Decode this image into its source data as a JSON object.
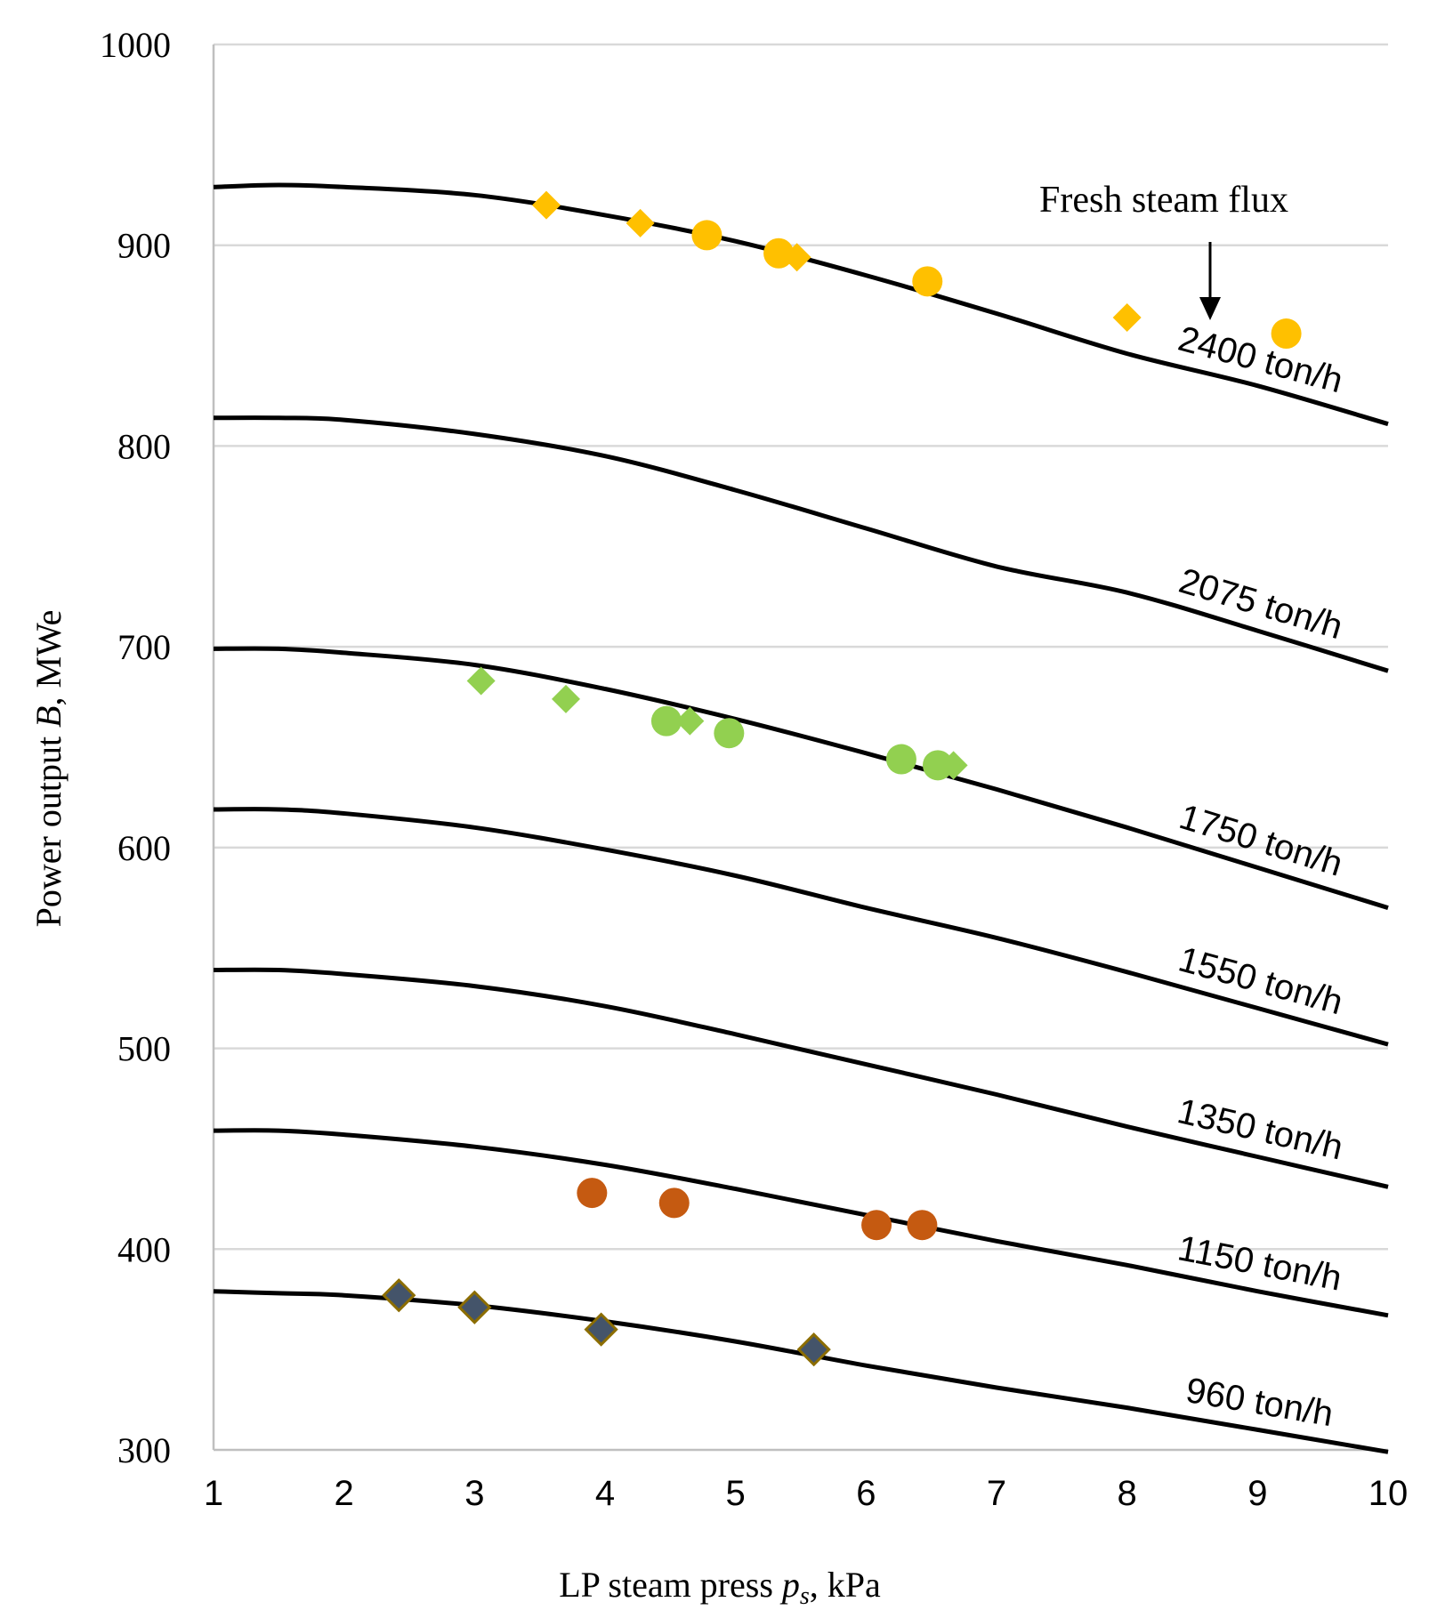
{
  "chart_data": {
    "type": "line",
    "title": "",
    "xlabel": {
      "prefix": "LP steam press ",
      "symbol": "p",
      "subscript": "s",
      "suffix": ", kPa"
    },
    "ylabel": {
      "prefix": "Power output ",
      "symbol": "B",
      "suffix": ", MWe"
    },
    "xlim": [
      1,
      10
    ],
    "ylim": [
      300,
      1000
    ],
    "x_ticks": [
      1,
      2,
      3,
      4,
      5,
      6,
      7,
      8,
      9,
      10
    ],
    "y_ticks": [
      300,
      400,
      500,
      600,
      700,
      800,
      900,
      1000
    ],
    "grid": "horizontal",
    "annotation": "Fresh steam flux",
    "series": [
      {
        "name": "2400 ton/h",
        "label": "2400 ton/h",
        "x": [
          1,
          1.5,
          2,
          3,
          4,
          5,
          6,
          7,
          8,
          9,
          10
        ],
        "y": [
          929,
          930,
          929,
          925,
          915,
          902,
          885,
          866,
          846,
          830,
          811
        ]
      },
      {
        "name": "2075 ton/h",
        "label": "2075 ton/h",
        "x": [
          1,
          1.5,
          2,
          3,
          4,
          5,
          6,
          7,
          8,
          9,
          10
        ],
        "y": [
          814,
          814,
          813,
          806,
          795,
          778,
          759,
          740,
          727,
          708,
          688
        ]
      },
      {
        "name": "1750 ton/h",
        "label": "1750 ton/h",
        "x": [
          1,
          1.5,
          2,
          3,
          4,
          5,
          6,
          7,
          8,
          9,
          10
        ],
        "y": [
          699,
          699,
          697,
          691,
          679,
          664,
          647,
          629,
          610,
          590,
          570
        ]
      },
      {
        "name": "1550 ton/h",
        "label": "1550 ton/h",
        "x": [
          1,
          1.5,
          2,
          3,
          4,
          5,
          6,
          7,
          8,
          9,
          10
        ],
        "y": [
          619,
          619,
          617,
          610,
          599,
          586,
          570,
          555,
          538,
          520,
          502
        ]
      },
      {
        "name": "1350 ton/h",
        "label": "1350 ton/h",
        "x": [
          1,
          1.5,
          2,
          3,
          4,
          5,
          6,
          7,
          8,
          9,
          10
        ],
        "y": [
          539,
          539,
          537,
          531,
          521,
          507,
          492,
          477,
          461,
          446,
          431
        ]
      },
      {
        "name": "1150 ton/h",
        "label": "1150 ton/h",
        "x": [
          1,
          1.5,
          2,
          3,
          4,
          5,
          6,
          7,
          8,
          9,
          10
        ],
        "y": [
          459,
          459,
          457,
          451,
          442,
          430,
          417,
          404,
          392,
          379,
          367
        ]
      },
      {
        "name": "960 ton/h",
        "label": "960 ton/h",
        "x": [
          1,
          1.5,
          2,
          3,
          4,
          5,
          6,
          7,
          8,
          9,
          10
        ],
        "y": [
          379,
          378,
          377,
          372,
          364,
          354,
          342,
          331,
          321,
          310,
          299
        ]
      }
    ],
    "points": [
      {
        "group": "2400",
        "marker": "diamond",
        "color": "#FFC000",
        "x": [
          3.55,
          4.27,
          5.47,
          8.0
        ],
        "y": [
          920,
          911,
          894,
          864
        ]
      },
      {
        "group": "2400",
        "marker": "circle",
        "color": "#FFC000",
        "x": [
          4.78,
          5.33,
          6.47,
          9.22
        ],
        "y": [
          905,
          896,
          882,
          856
        ]
      },
      {
        "group": "1750",
        "marker": "diamond",
        "color": "#92D050",
        "x": [
          3.05,
          3.7,
          4.65,
          6.67
        ],
        "y": [
          683,
          674,
          663,
          641
        ]
      },
      {
        "group": "1750",
        "marker": "circle",
        "color": "#92D050",
        "x": [
          4.47,
          4.95,
          6.27,
          6.55
        ],
        "y": [
          663,
          657,
          644,
          641
        ]
      },
      {
        "group": "1150",
        "marker": "circle",
        "color": "#C55A11",
        "x": [
          3.9,
          4.53,
          6.08,
          6.43
        ],
        "y": [
          428,
          423,
          412,
          412
        ]
      },
      {
        "group": "960",
        "marker": "diamond",
        "color": "#44546A",
        "stroke": "#8C6D00",
        "x": [
          2.42,
          3.0,
          3.97,
          5.6
        ],
        "y": [
          377,
          371,
          360,
          350
        ]
      }
    ],
    "colors": {
      "curve": "#000000",
      "grid": "#d9d9d9",
      "axis": "#bfbfbf"
    }
  }
}
